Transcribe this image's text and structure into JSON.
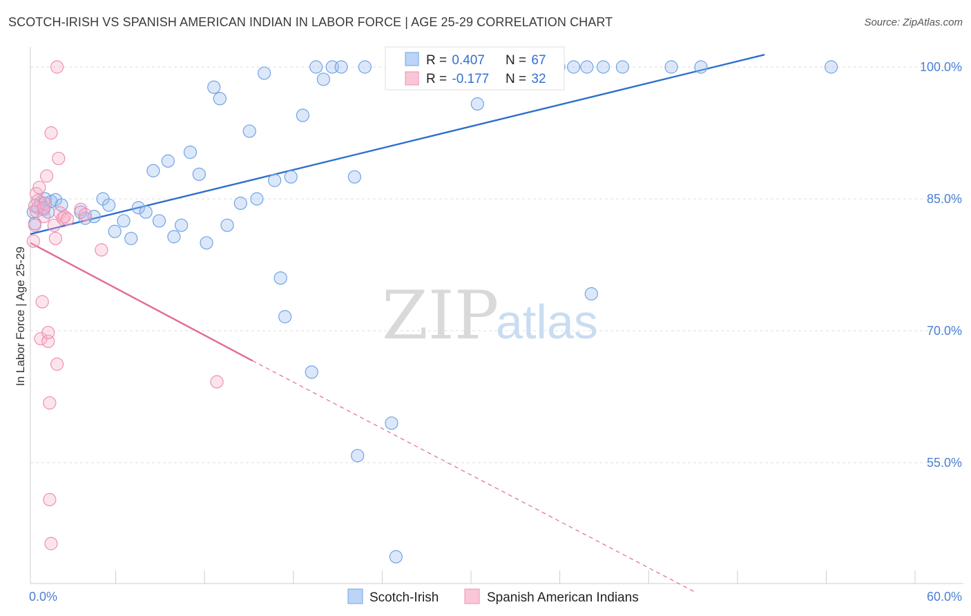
{
  "header": {
    "title": "SCOTCH-IRISH VS SPANISH AMERICAN INDIAN IN LABOR FORCE | AGE 25-29 CORRELATION CHART",
    "source": "Source: ZipAtlas.com"
  },
  "watermark": {
    "zip": "ZIP",
    "atlas": "atlas"
  },
  "colors": {
    "blue": "#6fa3e6",
    "blue_fill": "rgba(155,190,238,0.35)",
    "blue_line": "#2e6fcc",
    "pink": "#ee8fb0",
    "pink_fill": "rgba(247,178,204,0.35)",
    "pink_line": "#e06a98",
    "grid": "#dddddd",
    "axis_label": "#4a7fd4"
  },
  "legend": {
    "rows": [
      {
        "r_label": "R = ",
        "r_value": "0.407",
        "n_label": "N = ",
        "n_value": "67"
      },
      {
        "r_label": "R = ",
        "r_value": "-0.177",
        "n_label": "N = ",
        "n_value": "32"
      }
    ]
  },
  "chart_data": {
    "type": "scatter",
    "title": "SCOTCH-IRISH VS SPANISH AMERICAN INDIAN IN LABOR FORCE | AGE 25-29 CORRELATION CHART",
    "xlabel": "",
    "ylabel": "In Labor Force | Age 25-29",
    "xlim": [
      0,
      60
    ],
    "ylim": [
      40,
      102
    ],
    "x_tick_labels": [
      {
        "value": 0,
        "label": "0.0%"
      },
      {
        "value": 60,
        "label": "60.0%"
      }
    ],
    "y_tick_labels": [
      {
        "value": 100,
        "label": "100.0%"
      },
      {
        "value": 85,
        "label": "85.0%"
      },
      {
        "value": 70,
        "label": "70.0%"
      },
      {
        "value": 55,
        "label": "55.0%"
      }
    ],
    "x_minor_ticks": [
      6,
      12,
      18,
      24,
      30,
      36,
      42,
      48,
      54,
      60
    ],
    "series": [
      {
        "name": "Scotch-Irish",
        "color": "blue",
        "trend": {
          "x": [
            0,
            49.6
          ],
          "y": [
            81.0,
            101.4
          ],
          "dashed_to": null
        },
        "points": [
          [
            0.2,
            83.5
          ],
          [
            0.3,
            82.2
          ],
          [
            0.5,
            84.0
          ],
          [
            0.7,
            84.6
          ],
          [
            0.9,
            83.8
          ],
          [
            1.0,
            85.0
          ],
          [
            1.2,
            83.5
          ],
          [
            1.4,
            84.7
          ],
          [
            1.7,
            84.9
          ],
          [
            2.1,
            84.3
          ],
          [
            3.4,
            83.5
          ],
          [
            3.7,
            82.8
          ],
          [
            4.3,
            83.0
          ],
          [
            4.9,
            85.0
          ],
          [
            5.3,
            84.3
          ],
          [
            5.7,
            81.3
          ],
          [
            6.3,
            82.5
          ],
          [
            6.8,
            80.5
          ],
          [
            7.3,
            84.0
          ],
          [
            7.8,
            83.5
          ],
          [
            8.3,
            88.2
          ],
          [
            8.7,
            82.5
          ],
          [
            9.3,
            89.3
          ],
          [
            9.7,
            80.7
          ],
          [
            10.2,
            82.0
          ],
          [
            10.8,
            90.3
          ],
          [
            11.4,
            87.8
          ],
          [
            11.9,
            80.0
          ],
          [
            12.4,
            97.7
          ],
          [
            12.8,
            96.4
          ],
          [
            13.3,
            82.0
          ],
          [
            14.2,
            84.5
          ],
          [
            14.8,
            92.7
          ],
          [
            15.3,
            85.0
          ],
          [
            15.8,
            99.3
          ],
          [
            16.5,
            87.1
          ],
          [
            16.9,
            76.0
          ],
          [
            17.2,
            71.6
          ],
          [
            17.6,
            87.5
          ],
          [
            18.4,
            94.5
          ],
          [
            19.3,
            100.0
          ],
          [
            19.0,
            65.3
          ],
          [
            19.8,
            98.6
          ],
          [
            20.4,
            100.0
          ],
          [
            21.0,
            100.0
          ],
          [
            21.9,
            87.5
          ],
          [
            22.1,
            55.8
          ],
          [
            22.6,
            100.0
          ],
          [
            24.4,
            59.5
          ],
          [
            25.6,
            100.0
          ],
          [
            28.7,
            100.0
          ],
          [
            30.2,
            95.8
          ],
          [
            27.9,
            100.0
          ],
          [
            28.3,
            100.0
          ],
          [
            30.0,
            100.0
          ],
          [
            33.0,
            100.0
          ],
          [
            34.0,
            100.0
          ],
          [
            35.7,
            100.0
          ],
          [
            36.7,
            100.0
          ],
          [
            37.6,
            100.0
          ],
          [
            37.9,
            74.2
          ],
          [
            38.7,
            100.0
          ],
          [
            40.0,
            100.0
          ],
          [
            43.3,
            100.0
          ],
          [
            45.3,
            100.0
          ],
          [
            54.1,
            100.0
          ],
          [
            24.7,
            44.3
          ]
        ]
      },
      {
        "name": "Spanish American Indians",
        "color": "pink",
        "trend": {
          "x": [
            0,
            15.0
          ],
          "y": [
            80.0,
            66.6
          ],
          "dashed_to": [
            45.0,
            40.2
          ]
        },
        "points": [
          [
            0.2,
            80.2
          ],
          [
            0.3,
            82.0
          ],
          [
            0.4,
            83.6
          ],
          [
            0.4,
            85.6
          ],
          [
            0.5,
            84.8
          ],
          [
            0.6,
            86.3
          ],
          [
            0.7,
            69.1
          ],
          [
            0.8,
            73.3
          ],
          [
            0.9,
            83.0
          ],
          [
            1.0,
            84.5
          ],
          [
            1.1,
            87.6
          ],
          [
            1.2,
            68.8
          ],
          [
            1.2,
            69.8
          ],
          [
            1.3,
            61.8
          ],
          [
            1.3,
            50.8
          ],
          [
            1.4,
            45.8
          ],
          [
            1.4,
            92.5
          ],
          [
            1.6,
            82.0
          ],
          [
            1.7,
            80.5
          ],
          [
            1.8,
            100.0
          ],
          [
            1.8,
            66.2
          ],
          [
            1.9,
            89.6
          ],
          [
            2.0,
            83.4
          ],
          [
            2.2,
            82.8
          ],
          [
            2.3,
            83.0
          ],
          [
            3.4,
            83.8
          ],
          [
            3.7,
            83.2
          ],
          [
            4.8,
            79.2
          ],
          [
            12.6,
            64.2
          ],
          [
            0.3,
            84.2
          ],
          [
            0.9,
            84.0
          ],
          [
            2.5,
            82.7
          ]
        ]
      }
    ]
  },
  "bottom_legend": {
    "items": [
      {
        "label": "Scotch-Irish",
        "color": "blue"
      },
      {
        "label": "Spanish American Indians",
        "color": "pink"
      }
    ]
  }
}
